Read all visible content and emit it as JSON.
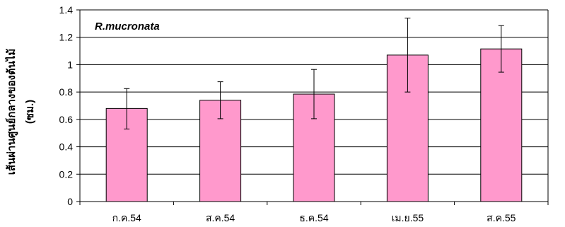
{
  "chart_data": {
    "type": "bar",
    "title": "R.mucronata",
    "xlabel": "",
    "ylabel": "เส้นผ่านศูนย์กลางของต้นไม้",
    "yunit": "(ซม.)",
    "categories": [
      "ก.ค.54",
      "ส.ค.54",
      "ธ.ค.54",
      "เม.ย.55",
      "ส.ค.55"
    ],
    "series": [
      {
        "values": [
          0.68,
          0.74,
          0.785,
          1.07,
          1.115
        ],
        "error_low": [
          0.53,
          0.605,
          0.605,
          0.8,
          0.945
        ],
        "error_high": [
          0.825,
          0.875,
          0.965,
          1.34,
          1.285
        ]
      }
    ],
    "ylim": [
      0,
      1.4
    ],
    "yticks": [
      "0",
      "0.2",
      "0.4",
      "0.6",
      "0.8",
      "1",
      "1.2",
      "1.4"
    ],
    "grid": true,
    "bar_color": "#ff99cc",
    "bar_stroke": "#000000"
  }
}
